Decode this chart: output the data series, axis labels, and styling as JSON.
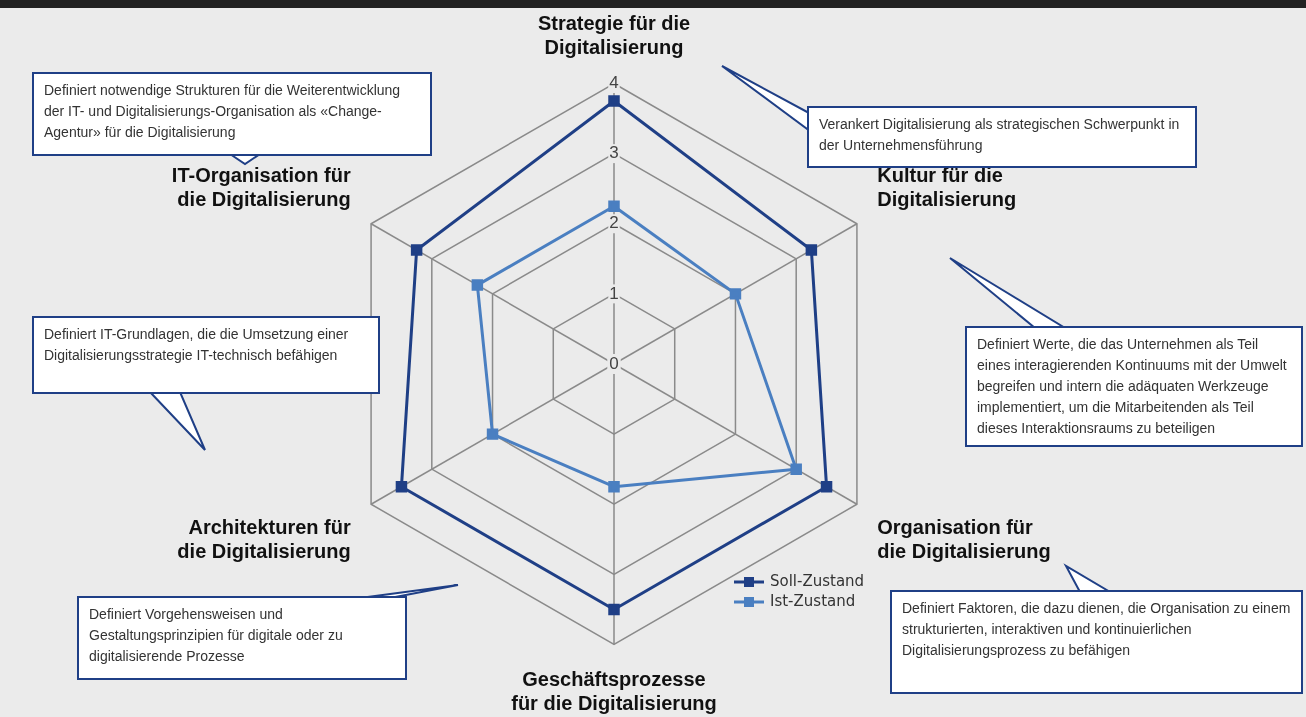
{
  "chart_data": {
    "type": "radar",
    "categories": [
      "Strategie für die Digitalisierung",
      "Kultur für die Digitalisierung",
      "Organisation für die Digitalisierung",
      "Geschäftsprozesse für die Digitalisierung",
      "Architekturen für die Digitalisierung",
      "IT-Organisation für die Digitalisierung"
    ],
    "series": [
      {
        "name": "Soll-Zustand",
        "color": "#1f3f86",
        "values": [
          3.75,
          3.25,
          3.5,
          3.5,
          3.5,
          3.25
        ]
      },
      {
        "name": "Ist-Zustand",
        "color": "#4a7fc1",
        "values": [
          2.25,
          2,
          3,
          1.75,
          2,
          2.25
        ]
      }
    ],
    "ylim": [
      0,
      4
    ],
    "yticks": [
      0,
      1,
      2,
      3,
      4
    ],
    "grid": true,
    "legend": "bottom right",
    "marker": "square",
    "line_style": "solid",
    "annotations": [
      "Verankert Digitalisierung als strategischen Schwerpunkt in der Unternehmensführung",
      "Definiert Werte, die das Unternehmen als Teil eines interagierenden Kontinuums mit der Umwelt begreifen und intern die adäquaten Werkzeuge implementiert, um die Mitarbeitenden als Teil dieses Interaktionsraums zu beteiligen",
      "Definiert Faktoren, die dazu dienen, die Organisation zu einem strukturierten, interaktiven und kontinuierlichen Digitalisierungsprozess zu befähigen",
      "Definiert Vorgehensweisen und Gestaltungsprinzipien für digitale oder zu digitalisierende Prozesse",
      "Definiert IT-Grundlagen, die die Umsetzung einer Digitalisierungsstrategie IT-technisch befähigen",
      "Definiert notwendige Strukturen für die Weiterentwicklung der IT- und Digitalisierungs-Organisation als «Change-Agentur» für die Digitalisierung"
    ]
  }
}
